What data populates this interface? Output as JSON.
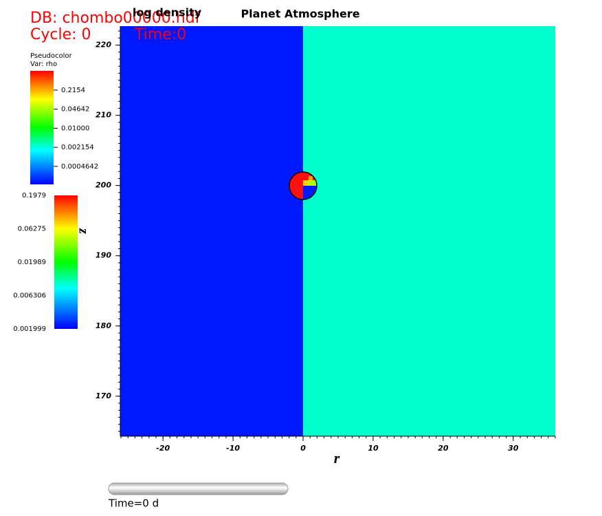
{
  "chart_data": {
    "type": "pseudocolor",
    "title": "Planet Atmosphere",
    "subtitle": "log density",
    "xlabel": "r",
    "ylabel": "z",
    "xlim": [
      -26.1,
      36.0
    ],
    "ylim": [
      164.3,
      222.7
    ],
    "xticks": [
      -20,
      -10,
      0,
      10,
      20,
      30
    ],
    "yticks": [
      170,
      180,
      190,
      200,
      210,
      220
    ],
    "colors": {
      "left": "#0018ff",
      "right": "#00ffcc"
    },
    "db": "DB: chombo00000.hdf",
    "cycle": "Cycle: 0",
    "time": "Time:0",
    "legend1": {
      "title": "Pseudocolor",
      "var": "Var: rho",
      "labels": [
        "0.2154",
        "0.04642",
        "0.01000",
        "0.002154",
        "0.0004642"
      ]
    },
    "legend2": {
      "labels": [
        "0.1979",
        "0.06275",
        "0.01989",
        "0.006306",
        "0.001999"
      ]
    },
    "slider_label": "Time=0 d"
  }
}
